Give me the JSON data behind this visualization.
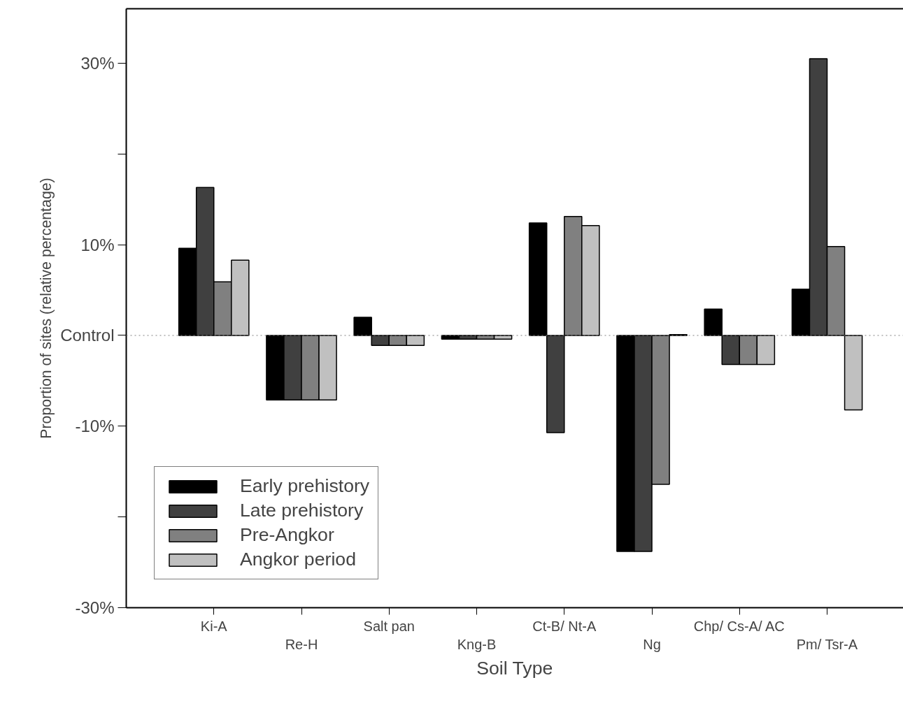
{
  "chart_data": {
    "type": "bar",
    "xlabel": "Soil Type",
    "ylabel": "Proportion of sites (relative percentage)",
    "categories": [
      "Ki-A",
      "Re-H",
      "Salt pan",
      "Kng-B",
      "Ct-B/ Nt-A",
      "Ng",
      "Chp/ Cs-A/ AC",
      "Pm/ Tsr-A"
    ],
    "series": [
      {
        "name": "Early prehistory",
        "color": "#000000",
        "values": [
          9.6,
          -7.1,
          2.0,
          -0.4,
          12.4,
          -23.8,
          2.9,
          5.1
        ]
      },
      {
        "name": "Late prehistory",
        "color": "#404040",
        "values": [
          16.3,
          -7.1,
          -1.1,
          -0.4,
          -10.7,
          -23.8,
          -3.2,
          30.5
        ]
      },
      {
        "name": "Pre-Angkor",
        "color": "#808080",
        "values": [
          5.9,
          -7.1,
          -1.1,
          -0.4,
          13.1,
          -16.4,
          -3.2,
          9.8
        ]
      },
      {
        "name": "Angkor period",
        "color": "#c0c0c0",
        "values": [
          8.3,
          -7.1,
          -1.1,
          -0.4,
          12.1,
          0.1,
          -3.2,
          -8.2
        ]
      }
    ],
    "ylim": [
      -30,
      36
    ],
    "yticks": [
      {
        "value": 30,
        "label": "30%"
      },
      {
        "value": 20,
        "label": null
      },
      {
        "value": 10,
        "label": "10%"
      },
      {
        "value": 0,
        "label": "Control"
      },
      {
        "value": -10,
        "label": "-10%"
      },
      {
        "value": -20,
        "label": null
      },
      {
        "value": -30,
        "label": "-30%"
      }
    ],
    "ref_lines": [
      {
        "axis": "y",
        "value": 0,
        "label": null,
        "color": "#808080",
        "line_style": "dotted"
      }
    ],
    "grid": false,
    "legend": "bottom left"
  }
}
